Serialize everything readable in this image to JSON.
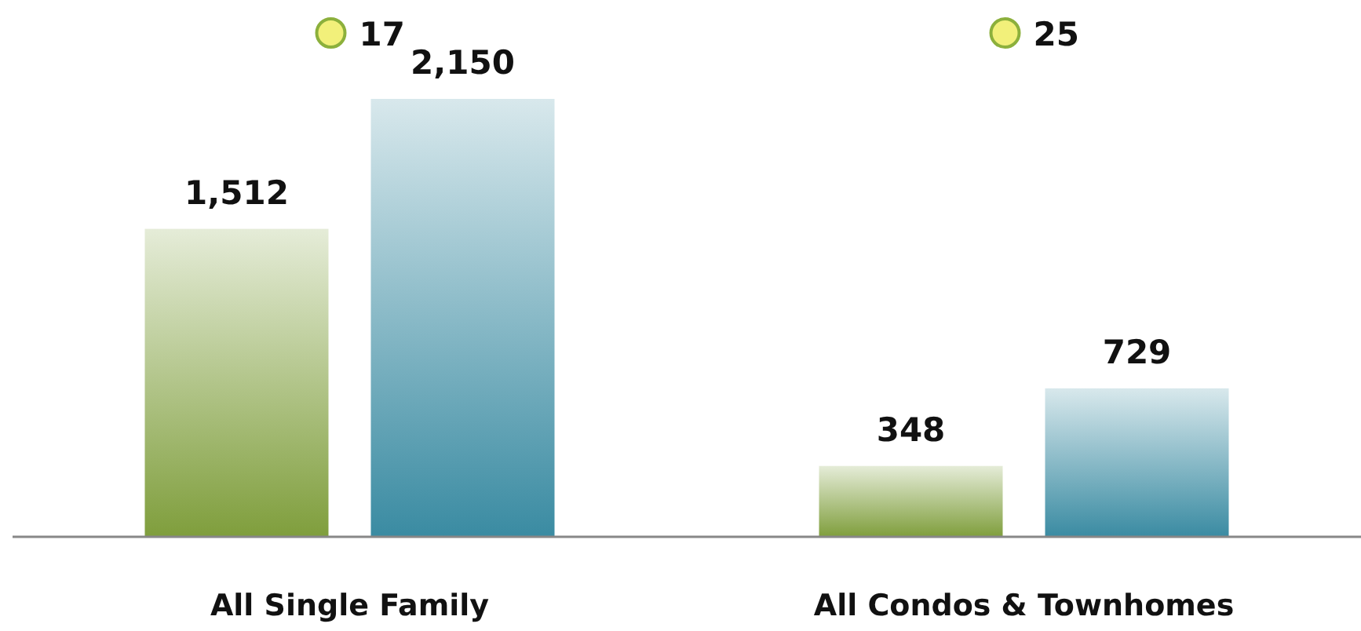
{
  "chart_data": {
    "type": "bar",
    "categories": [
      "All Single Family",
      "All Condos & Townhomes"
    ],
    "series": [
      {
        "color": "#7f9e3c",
        "values": [
          1512,
          348
        ],
        "value_labels": [
          "1,512",
          "348"
        ]
      },
      {
        "color": "#3a8ba2",
        "values": [
          2150,
          729
        ],
        "value_labels": [
          "2,150",
          "729"
        ]
      }
    ],
    "annotations": [
      "17",
      "25"
    ]
  }
}
